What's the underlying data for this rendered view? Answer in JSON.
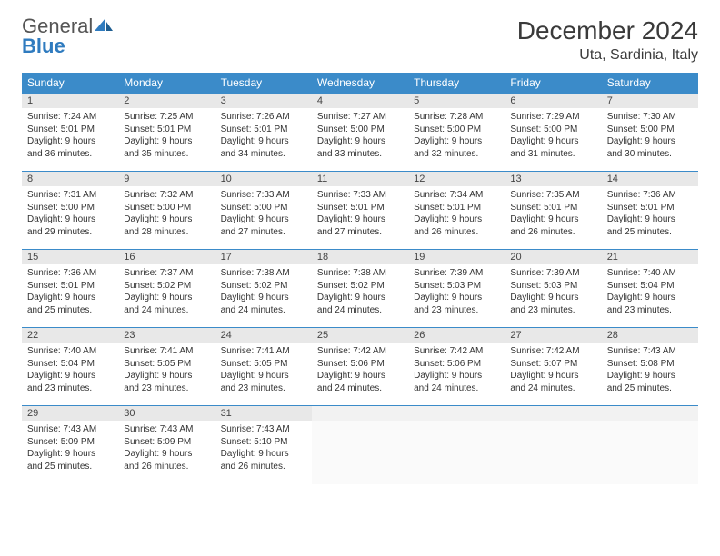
{
  "logo": {
    "text1": "General",
    "text2": "Blue"
  },
  "title": "December 2024",
  "location": "Uta, Sardinia, Italy",
  "colors": {
    "header_bg": "#3b8bc9",
    "header_text": "#ffffff",
    "daynum_bg": "#e8e8e8",
    "cell_border": "#3b8bc9",
    "body_text": "#333333",
    "logo_gray": "#555555",
    "logo_blue": "#2f7bbf"
  },
  "typography": {
    "title_fontsize": 28,
    "location_fontsize": 16,
    "dayheader_fontsize": 12,
    "daynum_fontsize": 11,
    "body_fontsize": 10
  },
  "day_headers": [
    "Sunday",
    "Monday",
    "Tuesday",
    "Wednesday",
    "Thursday",
    "Friday",
    "Saturday"
  ],
  "weeks": [
    [
      {
        "n": "1",
        "sr": "Sunrise: 7:24 AM",
        "ss": "Sunset: 5:01 PM",
        "dl1": "Daylight: 9 hours",
        "dl2": "and 36 minutes."
      },
      {
        "n": "2",
        "sr": "Sunrise: 7:25 AM",
        "ss": "Sunset: 5:01 PM",
        "dl1": "Daylight: 9 hours",
        "dl2": "and 35 minutes."
      },
      {
        "n": "3",
        "sr": "Sunrise: 7:26 AM",
        "ss": "Sunset: 5:01 PM",
        "dl1": "Daylight: 9 hours",
        "dl2": "and 34 minutes."
      },
      {
        "n": "4",
        "sr": "Sunrise: 7:27 AM",
        "ss": "Sunset: 5:00 PM",
        "dl1": "Daylight: 9 hours",
        "dl2": "and 33 minutes."
      },
      {
        "n": "5",
        "sr": "Sunrise: 7:28 AM",
        "ss": "Sunset: 5:00 PM",
        "dl1": "Daylight: 9 hours",
        "dl2": "and 32 minutes."
      },
      {
        "n": "6",
        "sr": "Sunrise: 7:29 AM",
        "ss": "Sunset: 5:00 PM",
        "dl1": "Daylight: 9 hours",
        "dl2": "and 31 minutes."
      },
      {
        "n": "7",
        "sr": "Sunrise: 7:30 AM",
        "ss": "Sunset: 5:00 PM",
        "dl1": "Daylight: 9 hours",
        "dl2": "and 30 minutes."
      }
    ],
    [
      {
        "n": "8",
        "sr": "Sunrise: 7:31 AM",
        "ss": "Sunset: 5:00 PM",
        "dl1": "Daylight: 9 hours",
        "dl2": "and 29 minutes."
      },
      {
        "n": "9",
        "sr": "Sunrise: 7:32 AM",
        "ss": "Sunset: 5:00 PM",
        "dl1": "Daylight: 9 hours",
        "dl2": "and 28 minutes."
      },
      {
        "n": "10",
        "sr": "Sunrise: 7:33 AM",
        "ss": "Sunset: 5:00 PM",
        "dl1": "Daylight: 9 hours",
        "dl2": "and 27 minutes."
      },
      {
        "n": "11",
        "sr": "Sunrise: 7:33 AM",
        "ss": "Sunset: 5:01 PM",
        "dl1": "Daylight: 9 hours",
        "dl2": "and 27 minutes."
      },
      {
        "n": "12",
        "sr": "Sunrise: 7:34 AM",
        "ss": "Sunset: 5:01 PM",
        "dl1": "Daylight: 9 hours",
        "dl2": "and 26 minutes."
      },
      {
        "n": "13",
        "sr": "Sunrise: 7:35 AM",
        "ss": "Sunset: 5:01 PM",
        "dl1": "Daylight: 9 hours",
        "dl2": "and 26 minutes."
      },
      {
        "n": "14",
        "sr": "Sunrise: 7:36 AM",
        "ss": "Sunset: 5:01 PM",
        "dl1": "Daylight: 9 hours",
        "dl2": "and 25 minutes."
      }
    ],
    [
      {
        "n": "15",
        "sr": "Sunrise: 7:36 AM",
        "ss": "Sunset: 5:01 PM",
        "dl1": "Daylight: 9 hours",
        "dl2": "and 25 minutes."
      },
      {
        "n": "16",
        "sr": "Sunrise: 7:37 AM",
        "ss": "Sunset: 5:02 PM",
        "dl1": "Daylight: 9 hours",
        "dl2": "and 24 minutes."
      },
      {
        "n": "17",
        "sr": "Sunrise: 7:38 AM",
        "ss": "Sunset: 5:02 PM",
        "dl1": "Daylight: 9 hours",
        "dl2": "and 24 minutes."
      },
      {
        "n": "18",
        "sr": "Sunrise: 7:38 AM",
        "ss": "Sunset: 5:02 PM",
        "dl1": "Daylight: 9 hours",
        "dl2": "and 24 minutes."
      },
      {
        "n": "19",
        "sr": "Sunrise: 7:39 AM",
        "ss": "Sunset: 5:03 PM",
        "dl1": "Daylight: 9 hours",
        "dl2": "and 23 minutes."
      },
      {
        "n": "20",
        "sr": "Sunrise: 7:39 AM",
        "ss": "Sunset: 5:03 PM",
        "dl1": "Daylight: 9 hours",
        "dl2": "and 23 minutes."
      },
      {
        "n": "21",
        "sr": "Sunrise: 7:40 AM",
        "ss": "Sunset: 5:04 PM",
        "dl1": "Daylight: 9 hours",
        "dl2": "and 23 minutes."
      }
    ],
    [
      {
        "n": "22",
        "sr": "Sunrise: 7:40 AM",
        "ss": "Sunset: 5:04 PM",
        "dl1": "Daylight: 9 hours",
        "dl2": "and 23 minutes."
      },
      {
        "n": "23",
        "sr": "Sunrise: 7:41 AM",
        "ss": "Sunset: 5:05 PM",
        "dl1": "Daylight: 9 hours",
        "dl2": "and 23 minutes."
      },
      {
        "n": "24",
        "sr": "Sunrise: 7:41 AM",
        "ss": "Sunset: 5:05 PM",
        "dl1": "Daylight: 9 hours",
        "dl2": "and 23 minutes."
      },
      {
        "n": "25",
        "sr": "Sunrise: 7:42 AM",
        "ss": "Sunset: 5:06 PM",
        "dl1": "Daylight: 9 hours",
        "dl2": "and 24 minutes."
      },
      {
        "n": "26",
        "sr": "Sunrise: 7:42 AM",
        "ss": "Sunset: 5:06 PM",
        "dl1": "Daylight: 9 hours",
        "dl2": "and 24 minutes."
      },
      {
        "n": "27",
        "sr": "Sunrise: 7:42 AM",
        "ss": "Sunset: 5:07 PM",
        "dl1": "Daylight: 9 hours",
        "dl2": "and 24 minutes."
      },
      {
        "n": "28",
        "sr": "Sunrise: 7:43 AM",
        "ss": "Sunset: 5:08 PM",
        "dl1": "Daylight: 9 hours",
        "dl2": "and 25 minutes."
      }
    ],
    [
      {
        "n": "29",
        "sr": "Sunrise: 7:43 AM",
        "ss": "Sunset: 5:09 PM",
        "dl1": "Daylight: 9 hours",
        "dl2": "and 25 minutes."
      },
      {
        "n": "30",
        "sr": "Sunrise: 7:43 AM",
        "ss": "Sunset: 5:09 PM",
        "dl1": "Daylight: 9 hours",
        "dl2": "and 26 minutes."
      },
      {
        "n": "31",
        "sr": "Sunrise: 7:43 AM",
        "ss": "Sunset: 5:10 PM",
        "dl1": "Daylight: 9 hours",
        "dl2": "and 26 minutes."
      },
      {
        "empty": true
      },
      {
        "empty": true
      },
      {
        "empty": true
      },
      {
        "empty": true
      }
    ]
  ]
}
